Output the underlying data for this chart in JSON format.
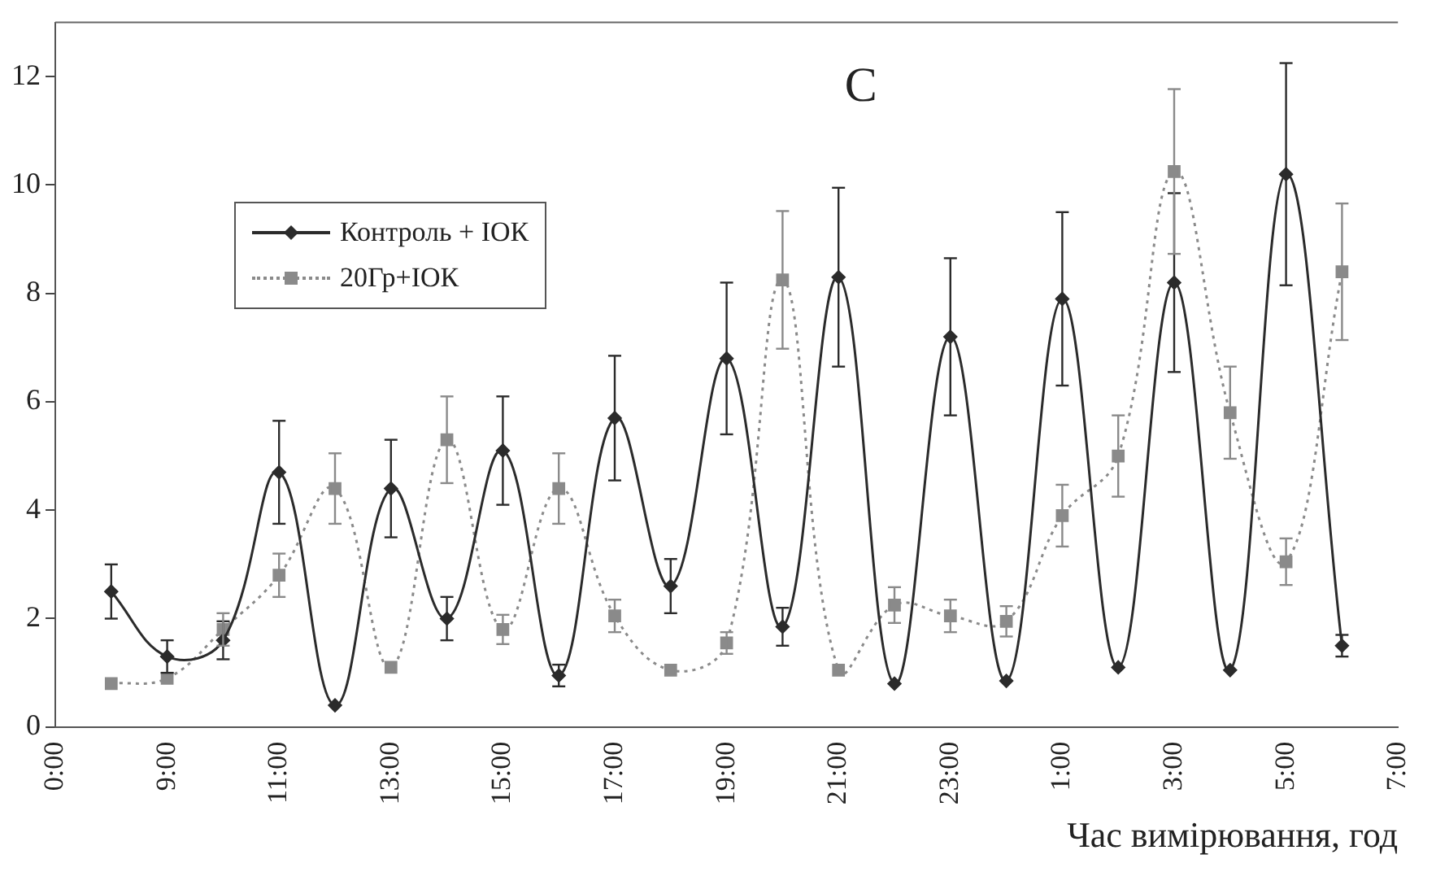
{
  "chart_data": {
    "type": "line",
    "annotations": [
      "C"
    ],
    "xlabel": "Час вимірювання, год",
    "categories": [
      "0:00",
      null,
      "9:00",
      null,
      "11:00",
      null,
      "13:00",
      null,
      "15:00",
      null,
      "17:00",
      null,
      "19:00",
      null,
      "21:00",
      null,
      "23:00",
      null,
      "1:00",
      null,
      "3:00",
      null,
      "5:00",
      null,
      "7:00"
    ],
    "ylim": [
      0,
      13
    ],
    "yticks": [
      0,
      2,
      4,
      6,
      8,
      10,
      12
    ],
    "grid": false,
    "legend": "top left",
    "series": [
      {
        "name": "Контроль + ІОК",
        "color": "#2b2b2b",
        "marker": "diamond",
        "line_style": "solid",
        "values": [
          null,
          2.5,
          1.3,
          1.6,
          4.7,
          0.4,
          4.4,
          2.0,
          5.1,
          0.95,
          5.7,
          2.6,
          6.8,
          1.85,
          8.3,
          0.8,
          7.2,
          0.85,
          7.9,
          1.1,
          8.2,
          1.05,
          10.2,
          1.5,
          null
        ],
        "errors": [
          null,
          0.5,
          0.3,
          0.35,
          0.95,
          null,
          0.9,
          0.4,
          1.0,
          0.2,
          1.15,
          0.5,
          1.4,
          0.35,
          1.65,
          null,
          1.45,
          null,
          1.6,
          null,
          1.65,
          null,
          2.05,
          0.2,
          null
        ]
      },
      {
        "name": "20Гр+ІОК",
        "color": "#8a8a8a",
        "marker": "square",
        "line_style": "dotted",
        "values": [
          null,
          0.8,
          0.9,
          1.8,
          2.8,
          4.4,
          1.1,
          5.3,
          1.8,
          4.4,
          2.05,
          1.05,
          1.55,
          8.25,
          1.05,
          2.25,
          2.05,
          1.95,
          3.9,
          5.0,
          10.25,
          5.8,
          3.05,
          8.4,
          null
        ],
        "errors": [
          null,
          null,
          null,
          0.3,
          0.4,
          0.65,
          null,
          0.8,
          0.27,
          0.65,
          0.3,
          null,
          0.2,
          1.27,
          null,
          0.33,
          0.3,
          0.28,
          0.57,
          0.75,
          1.52,
          0.85,
          0.43,
          1.26,
          null
        ]
      }
    ]
  }
}
